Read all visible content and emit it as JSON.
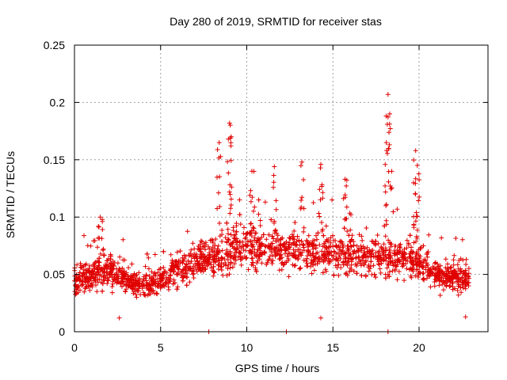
{
  "chart_data": {
    "type": "scatter",
    "title": "Day 280 of 2019, SRMTID for receiver stas",
    "xlabel": "GPS time / hours",
    "ylabel": "SRMTID / TECUs",
    "xlim": [
      0,
      24
    ],
    "ylim": [
      0,
      0.25
    ],
    "xticks": [
      0,
      5,
      10,
      15,
      20
    ],
    "xtick_labels": [
      "0",
      "5",
      "10",
      "15",
      "20"
    ],
    "yticks": [
      0,
      0.05,
      0.1,
      0.15,
      0.2,
      0.25
    ],
    "ytick_labels": [
      "0",
      "0.05",
      "0.1",
      "0.15",
      "0.2",
      "0.25"
    ],
    "grid": true,
    "marker": "+",
    "series": [
      {
        "name": "SRMTID",
        "color": "#e00000",
        "envelope_hours": [
          0,
          1,
          2,
          3,
          4,
          5,
          6,
          7,
          8,
          9,
          10,
          11,
          12,
          13,
          14,
          15,
          16,
          17,
          18,
          19,
          20,
          21,
          22,
          23
        ],
        "envelope_base": [
          0.045,
          0.05,
          0.055,
          0.045,
          0.04,
          0.045,
          0.055,
          0.06,
          0.065,
          0.07,
          0.075,
          0.072,
          0.07,
          0.07,
          0.068,
          0.068,
          0.068,
          0.066,
          0.066,
          0.065,
          0.062,
          0.05,
          0.048,
          0.045
        ],
        "envelope_spread": [
          0.018,
          0.02,
          0.022,
          0.018,
          0.016,
          0.018,
          0.022,
          0.025,
          0.025,
          0.028,
          0.028,
          0.026,
          0.026,
          0.026,
          0.026,
          0.025,
          0.025,
          0.025,
          0.025,
          0.025,
          0.025,
          0.02,
          0.018,
          0.018
        ],
        "peaks": [
          {
            "x": 1.5,
            "y": 0.1
          },
          {
            "x": 8.4,
            "y": 0.165
          },
          {
            "x": 9.0,
            "y": 0.182
          },
          {
            "x": 9.1,
            "y": 0.17
          },
          {
            "x": 10.3,
            "y": 0.14
          },
          {
            "x": 11.6,
            "y": 0.144
          },
          {
            "x": 13.2,
            "y": 0.148
          },
          {
            "x": 14.3,
            "y": 0.146
          },
          {
            "x": 15.7,
            "y": 0.133
          },
          {
            "x": 18.2,
            "y": 0.207
          },
          {
            "x": 18.3,
            "y": 0.19
          },
          {
            "x": 18.1,
            "y": 0.165
          },
          {
            "x": 19.8,
            "y": 0.158
          },
          {
            "x": 19.9,
            "y": 0.145
          }
        ],
        "lows": [
          {
            "x": 2.6,
            "y": 0.012
          },
          {
            "x": 14.3,
            "y": 0.012
          },
          {
            "x": 22.7,
            "y": 0.013
          }
        ],
        "zero_points": [
          {
            "x": 7.8,
            "y": 0
          },
          {
            "x": 12.3,
            "y": 0
          },
          {
            "x": 18.2,
            "y": 0
          }
        ],
        "n_points": 2200,
        "seed": 280
      }
    ]
  }
}
